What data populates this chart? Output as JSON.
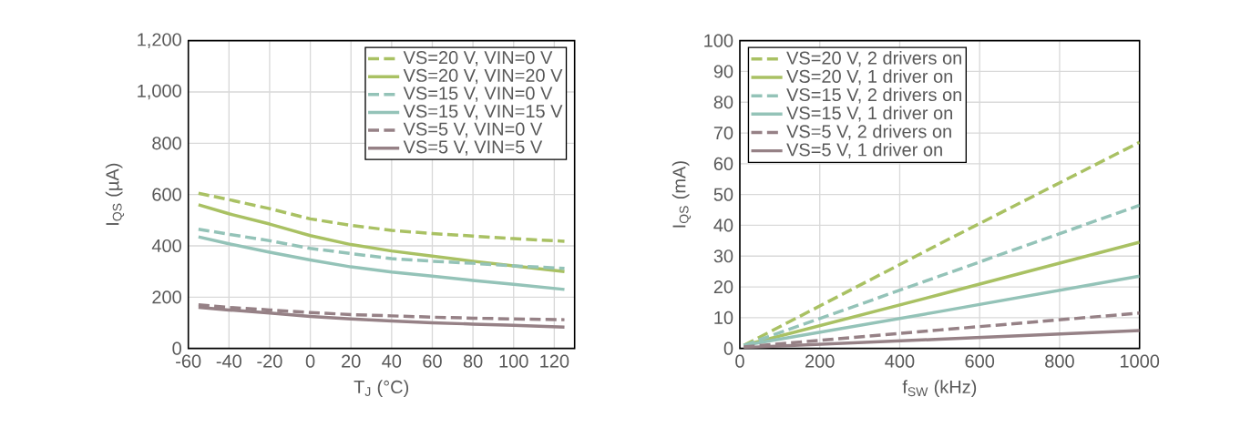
{
  "chart_data": [
    {
      "type": "line",
      "xlabel": "T$_{J}$ (°C)",
      "ylabel": "I$_{QS}$ (µA)",
      "x": [
        -55,
        -40,
        -20,
        0,
        20,
        40,
        60,
        80,
        100,
        125
      ],
      "xlim": [
        -60,
        130
      ],
      "ylim": [
        0,
        1200
      ],
      "xticks": [
        -60,
        -40,
        -20,
        0,
        20,
        40,
        60,
        80,
        100,
        120
      ],
      "yticks": [
        0,
        200,
        400,
        600,
        800,
        {
          "value": 1000,
          "label": "1,000"
        },
        {
          "value": 1200,
          "label": "1,200"
        }
      ],
      "grid": true,
      "legend": "top right",
      "series": [
        {
          "name": "VS=20 V, VIN=0 V",
          "color": "#a9c163",
          "line_style": "dashed",
          "values": [
            605,
            580,
            545,
            505,
            480,
            460,
            448,
            438,
            428,
            418
          ]
        },
        {
          "name": "VS=20 V, VIN=20 V",
          "color": "#a9c163",
          "line_style": "solid",
          "values": [
            560,
            525,
            485,
            440,
            405,
            380,
            360,
            340,
            322,
            300
          ]
        },
        {
          "name": "VS=15 V, VIN=0 V",
          "color": "#94c3b8",
          "line_style": "dashed",
          "values": [
            465,
            445,
            420,
            390,
            370,
            350,
            340,
            332,
            322,
            312
          ]
        },
        {
          "name": "VS=15 V, VIN=15 V",
          "color": "#94c3b8",
          "line_style": "solid",
          "values": [
            435,
            408,
            375,
            345,
            318,
            298,
            282,
            265,
            250,
            230
          ]
        },
        {
          "name": "VS=5 V, VIN=0 V",
          "color": "#968186",
          "line_style": "dashed",
          "values": [
            170,
            160,
            150,
            140,
            132,
            127,
            122,
            118,
            115,
            112
          ]
        },
        {
          "name": "VS=5 V, VIN=5 V",
          "color": "#968186",
          "line_style": "solid",
          "values": [
            160,
            150,
            138,
            125,
            115,
            107,
            100,
            95,
            90,
            83
          ]
        }
      ]
    },
    {
      "type": "line",
      "xlabel": "f$_{SW}$ (kHz)",
      "ylabel": "I$_{QS}$ (mA)",
      "x": [
        10,
        500,
        1000
      ],
      "xlim": [
        0,
        1000
      ],
      "ylim": [
        0,
        100
      ],
      "xticks": [
        0,
        200,
        400,
        600,
        800,
        1000
      ],
      "yticks": [
        0,
        10,
        20,
        30,
        40,
        50,
        60,
        70,
        80,
        90,
        100
      ],
      "grid": true,
      "legend": "top left",
      "series": [
        {
          "name": "VS=20 V, 2 drivers on",
          "color": "#a9c163",
          "line_style": "dashed",
          "values": [
            1,
            34,
            67
          ]
        },
        {
          "name": "VS=20 V, 1 driver on",
          "color": "#a9c163",
          "line_style": "solid",
          "values": [
            1,
            17.5,
            34.5
          ]
        },
        {
          "name": "VS=15 V, 2 drivers on",
          "color": "#94c3b8",
          "line_style": "dashed",
          "values": [
            1,
            23.5,
            46.5
          ]
        },
        {
          "name": "VS=15 V, 1 driver on",
          "color": "#94c3b8",
          "line_style": "solid",
          "values": [
            1,
            12,
            23.5
          ]
        },
        {
          "name": "VS=5 V, 2 drivers on",
          "color": "#968186",
          "line_style": "dashed",
          "values": [
            0.5,
            6,
            11.5
          ]
        },
        {
          "name": "VS=5 V, 1 driver on",
          "color": "#968186",
          "line_style": "solid",
          "values": [
            0.3,
            3,
            5.8
          ]
        }
      ]
    }
  ]
}
